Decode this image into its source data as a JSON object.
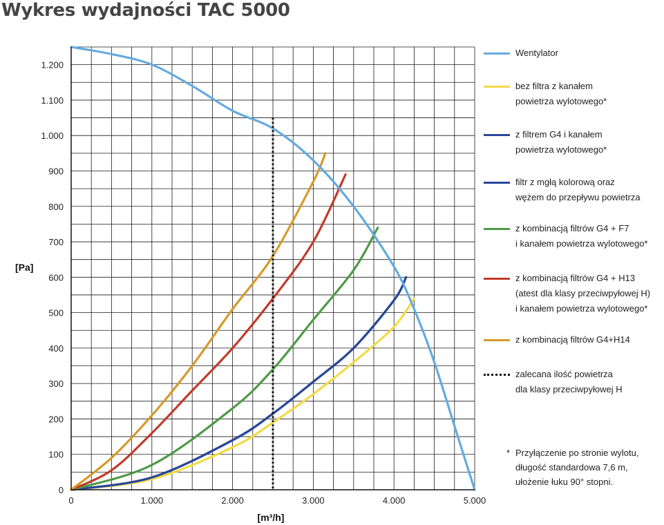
{
  "title": "Wykres wydajności TAC 5000",
  "chart_data": {
    "type": "line",
    "xlabel": "[m³/h]",
    "ylabel": "[Pa]",
    "xlim": [
      0,
      5000
    ],
    "ylim": [
      0,
      1250
    ],
    "x_ticks": [
      {
        "value": 0,
        "label": "0"
      },
      {
        "value": 1000,
        "label": "1.000"
      },
      {
        "value": 2000,
        "label": "2.000"
      },
      {
        "value": 3000,
        "label": "3.000"
      },
      {
        "value": 4000,
        "label": "4.000"
      },
      {
        "value": 5000,
        "label": "5.000"
      }
    ],
    "y_ticks": [
      {
        "value": 0,
        "label": "0"
      },
      {
        "value": 100,
        "label": "100"
      },
      {
        "value": 200,
        "label": "200"
      },
      {
        "value": 300,
        "label": "300"
      },
      {
        "value": 400,
        "label": "400"
      },
      {
        "value": 500,
        "label": "500"
      },
      {
        "value": 600,
        "label": "600"
      },
      {
        "value": 700,
        "label": "700"
      },
      {
        "value": 800,
        "label": "800"
      },
      {
        "value": 900,
        "label": "900"
      },
      {
        "value": 1000,
        "label": "1.000"
      },
      {
        "value": 1100,
        "label": "1.100"
      },
      {
        "value": 1200,
        "label": "1.200"
      }
    ],
    "grid": true,
    "legend_position": "right",
    "series": [
      {
        "name": "Wentylator",
        "color": "#64aadf",
        "x": [
          0,
          500,
          1000,
          1500,
          2000,
          2500,
          3000,
          3500,
          4000,
          4250,
          4500,
          4750,
          5000
        ],
        "y": [
          1250,
          1230,
          1200,
          1140,
          1070,
          1020,
          930,
          800,
          630,
          510,
          360,
          180,
          0
        ]
      },
      {
        "name": "bez filtra z kanałem\npowietrza wylotowego*",
        "color": "#f2da45",
        "x": [
          0,
          1000,
          2000,
          2500,
          3000,
          3500,
          4000,
          4250
        ],
        "y": [
          0,
          30,
          120,
          190,
          270,
          360,
          460,
          540
        ]
      },
      {
        "name": "z filtrem G4 i kanałem\npowietrza wylotowego*",
        "color": "#2a479a",
        "x": [
          0,
          1000,
          2000,
          2500,
          3000,
          3500,
          4000,
          4150
        ],
        "y": [
          0,
          35,
          140,
          215,
          305,
          400,
          535,
          600
        ]
      },
      {
        "name": "filtr z mgłą kolorową oraz\nwężem do przepływu powietrza",
        "color": "#2a479a",
        "x": [
          0,
          1000,
          2000,
          2500,
          3000,
          3500,
          4000,
          4150
        ],
        "y": [
          0,
          35,
          140,
          215,
          305,
          400,
          535,
          600
        ]
      },
      {
        "name": "z kombinacją filtrów G4 + F7\ni kanałem powietrza wylotowego*",
        "color": "#4e9a47",
        "x": [
          0,
          1000,
          2000,
          2500,
          3000,
          3500,
          3800
        ],
        "y": [
          0,
          70,
          230,
          340,
          480,
          620,
          740
        ]
      },
      {
        "name": "z kombinacją filtrów G4 + H13\n(atest dla klasy przeciwpyłowej H)\ni kanałem powietrza wylotowego*",
        "color": "#c23a2a",
        "x": [
          0,
          500,
          1000,
          1500,
          2000,
          2500,
          3000,
          3400
        ],
        "y": [
          0,
          55,
          160,
          280,
          400,
          540,
          700,
          890
        ]
      },
      {
        "name": "z kombinacją filtrów G4+H14",
        "color": "#d49a2a",
        "x": [
          0,
          500,
          1000,
          1500,
          2000,
          2500,
          3000,
          3150
        ],
        "y": [
          0,
          90,
          210,
          350,
          510,
          660,
          870,
          950
        ]
      }
    ],
    "reference_line": {
      "name": "zalecana ilość powietrza\ndla klasy przeciwpyłowej H",
      "x": 2500,
      "y_max": 1050,
      "style": "dotted",
      "color": "#111111"
    }
  },
  "legend": [
    {
      "label": "Wentylator",
      "color": "#64aadf",
      "style": "solid"
    },
    {
      "label": "bez filtra z kanałem\npowietrza wylotowego*",
      "color": "#f2da45",
      "style": "solid"
    },
    {
      "label": "z filtrem G4 i kanałem\npowietrza wylotowego*",
      "color": "#2a479a",
      "style": "solid"
    },
    {
      "label": "filtr z mgłą kolorową oraz\nwężem do przepływu powietrza",
      "color": "#2a479a",
      "style": "solid"
    },
    {
      "label": "z kombinacją filtrów G4 + F7\ni kanałem powietrza wylotowego*",
      "color": "#4e9a47",
      "style": "solid"
    },
    {
      "label": "z kombinacją filtrów G4 + H13\n(atest dla klasy przeciwpyłowej H)\ni kanałem powietrza wylotowego*",
      "color": "#c23a2a",
      "style": "solid"
    },
    {
      "label": "z kombinacją filtrów G4+H14",
      "color": "#d49a2a",
      "style": "solid"
    },
    {
      "label": "zalecana ilość powietrza\ndla klasy przeciwpyłowej H",
      "color": "#111111",
      "style": "dotted"
    }
  ],
  "footnote": {
    "star": "*",
    "text": "Przyłączenie po stronie wylotu,\ndługość standardowa 7,6 m,\nułożenie łuku 90° stopni."
  }
}
